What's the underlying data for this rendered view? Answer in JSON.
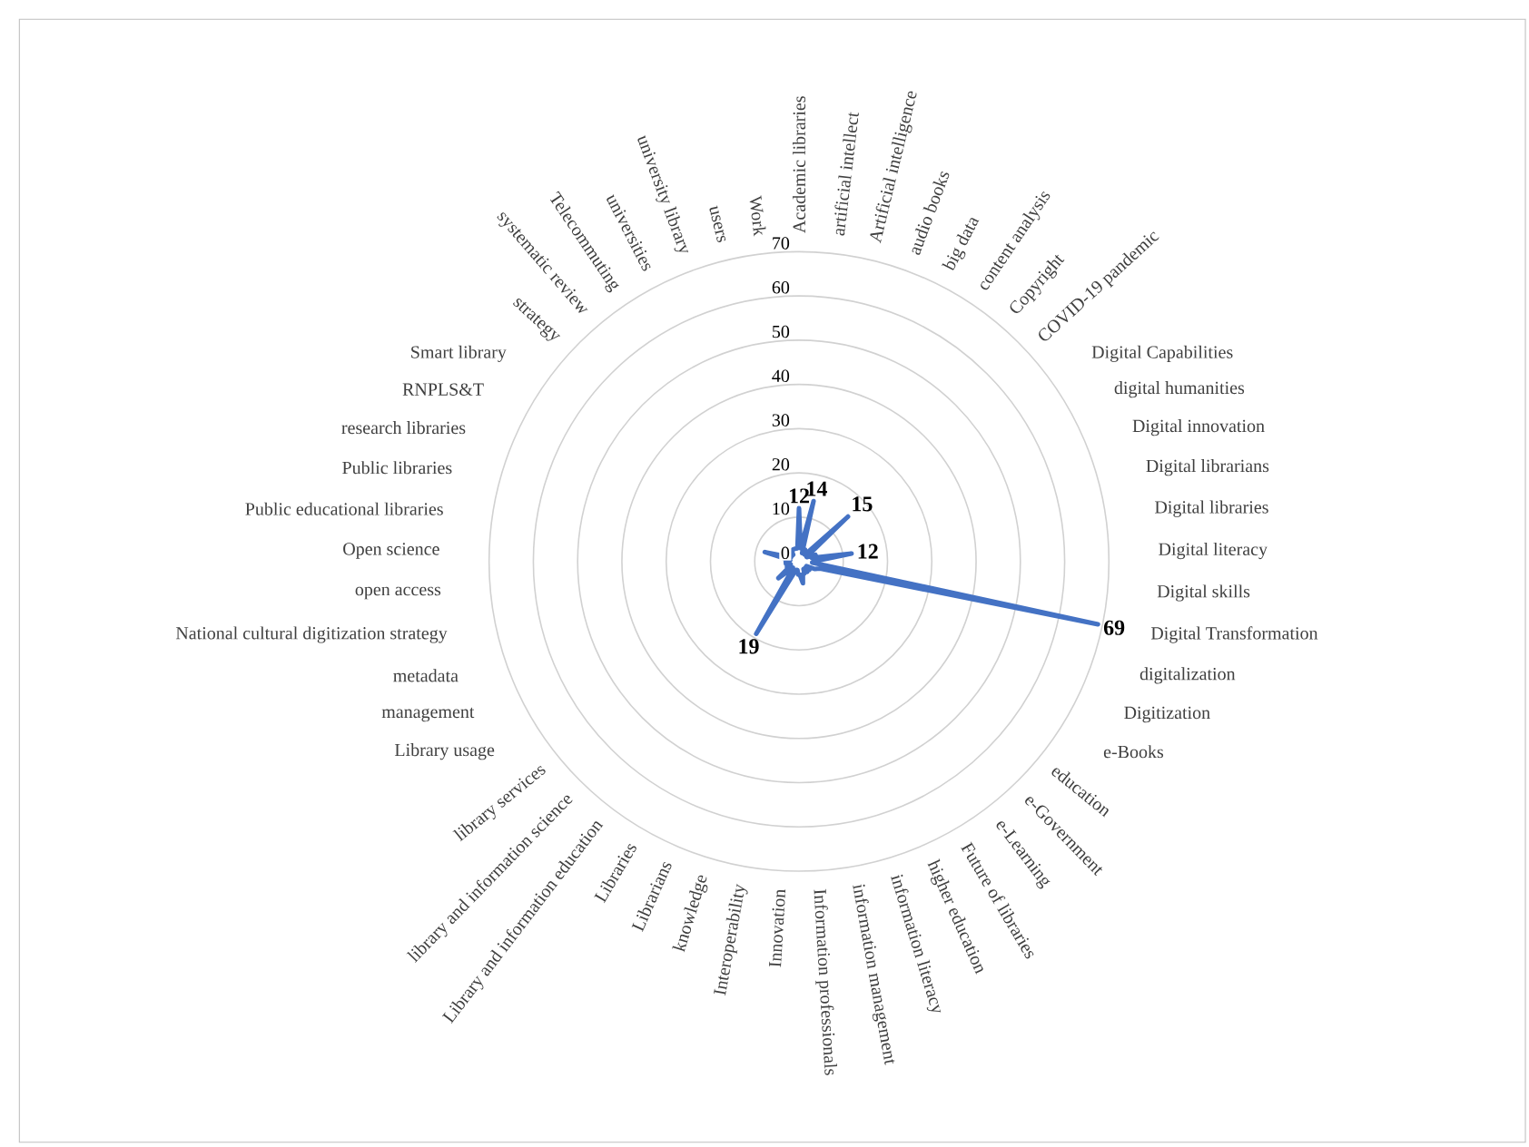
{
  "chart_data": {
    "type": "radar",
    "categories": [
      "Academic libraries",
      "artificial intellect",
      "Artificial intelligence",
      "audio books",
      "big data",
      "content analysis",
      "Copyright",
      "COVID-19 pandemic",
      "Digital Capabilities",
      "digital humanities",
      "Digital innovation",
      "Digital librarians",
      "Digital libraries",
      "Digital literacy",
      "Digital skills",
      "Digital Transformation",
      "digitalization",
      "Digitization",
      "e-Books",
      "education",
      "e-Government",
      "e-Learning",
      "Future of libraries",
      "higher education",
      "information literacy",
      "information management",
      "Information professionals",
      "Innovation",
      "Interoperability",
      "knowledge",
      "Librarians",
      "Libraries",
      "Library and information education",
      "library and information science",
      "library services",
      "Library usage",
      "management",
      "metadata",
      "National cultural digitization strategy",
      "open access",
      "Open science",
      "Public educational libraries",
      "Public libraries",
      "research libraries",
      "RNPLS&T",
      "Smart library",
      "strategy",
      "systematic review",
      "Telecommuting",
      "universities",
      "university library",
      "users",
      "Work"
    ],
    "series": [
      {
        "color": "#4472c4",
        "values": [
          12,
          3,
          14,
          2,
          3,
          2,
          2,
          15,
          3,
          2,
          4,
          3,
          12,
          4,
          3,
          69,
          5,
          4,
          2,
          3,
          2,
          3,
          2,
          3,
          3,
          5,
          3,
          3,
          2,
          2,
          3,
          19,
          3,
          2,
          6,
          3,
          3,
          2,
          3,
          3,
          3,
          2,
          8,
          3,
          2,
          3,
          2,
          2,
          3,
          3,
          3,
          3,
          3
        ],
        "value_labels": [
          "12",
          null,
          "14",
          null,
          null,
          null,
          null,
          "15",
          null,
          null,
          null,
          null,
          "12",
          null,
          null,
          "69",
          null,
          null,
          null,
          null,
          null,
          null,
          null,
          null,
          null,
          null,
          null,
          null,
          null,
          null,
          null,
          "19",
          null,
          null,
          null,
          null,
          null,
          null,
          null,
          null,
          null,
          null,
          null,
          null,
          null,
          null,
          null,
          null,
          null,
          null,
          null,
          null,
          null
        ]
      }
    ],
    "ylim": [
      0,
      70
    ],
    "yticks": [
      0,
      10,
      20,
      30,
      40,
      50,
      60,
      70
    ],
    "grid": true
  }
}
